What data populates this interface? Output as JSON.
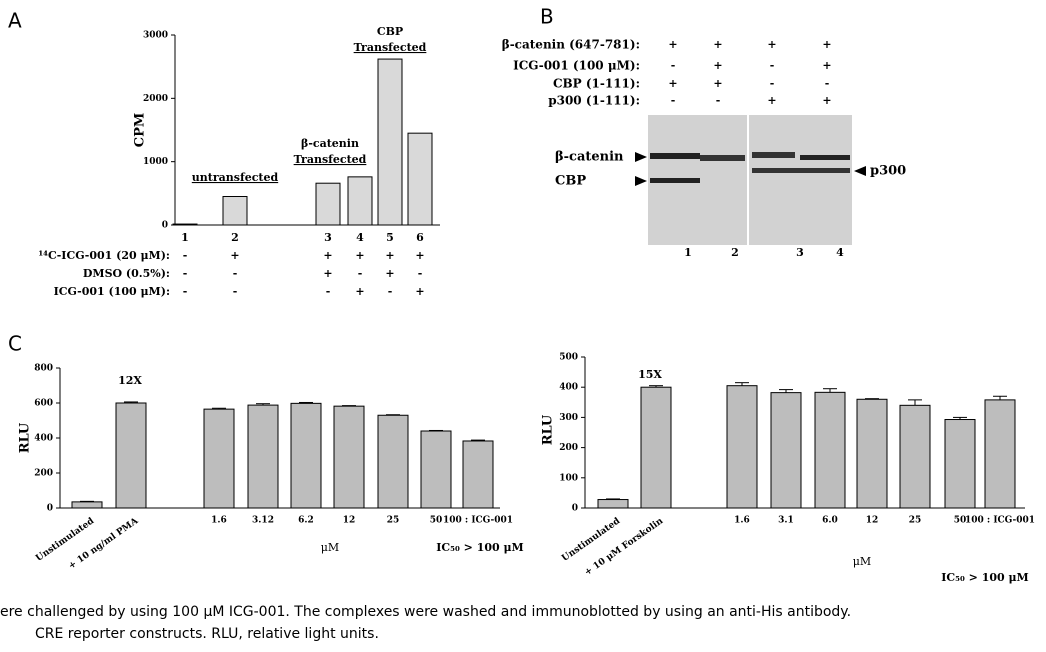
{
  "panel_labels": [
    "A",
    "B",
    "C"
  ],
  "chart_data": [
    {
      "type": "bar",
      "y_label": "CPM",
      "categories": [
        "1",
        "2",
        "3",
        "4",
        "5",
        "6"
      ],
      "values": [
        15,
        450,
        660,
        760,
        2620,
        1450
      ],
      "color": "#d9d9d9",
      "ylim": [
        0,
        3000
      ],
      "yticks": [
        0,
        1000,
        2000,
        3000
      ],
      "annotations": [
        [
          "untransfected"
        ],
        [
          "β-catenin",
          "Transfected"
        ],
        [
          "CBP",
          "Transfected"
        ]
      ],
      "conditions": [
        {
          "label": "¹⁴C-ICG-001 (20 μM):",
          "signs": [
            "-",
            "+",
            "+",
            "+",
            "+",
            "+"
          ]
        },
        {
          "label": "DMSO (0.5%):",
          "signs": [
            "-",
            "-",
            "+",
            "-",
            "+",
            "-"
          ]
        },
        {
          "label": "ICG-001 (100 μM):",
          "signs": [
            "-",
            "-",
            "-",
            "+",
            "-",
            "+"
          ]
        }
      ]
    },
    {
      "type": "bar",
      "y_label": "RLU",
      "categories": [
        "Unstimulated",
        "+ 10 ng/ml PMA",
        "1.6",
        "3.12",
        "6.2",
        "12",
        "25",
        "50",
        "100 : ICG-001"
      ],
      "values": [
        35,
        600,
        565,
        588,
        598,
        582,
        530,
        440,
        383
      ],
      "errors": [
        3,
        6,
        5,
        8,
        5,
        3,
        3,
        3,
        5
      ],
      "color": "#bdbdbd",
      "ylim": [
        0,
        800
      ],
      "yticks": [
        0,
        200,
        400,
        600,
        800
      ],
      "annotations": [
        [
          "12X"
        ]
      ],
      "x_label": "μM",
      "note": "IC₅₀ > 100 μM"
    },
    {
      "type": "bar",
      "y_label": "RLU",
      "categories": [
        "Unstimulated",
        "+ 10 μM Forskolin",
        "1.6",
        "3.1",
        "6.0",
        "12",
        "25",
        "50",
        "100 : ICG-001"
      ],
      "values": [
        28,
        400,
        405,
        382,
        383,
        360,
        340,
        293,
        358
      ],
      "errors": [
        2,
        5,
        10,
        10,
        12,
        2,
        18,
        7,
        12
      ],
      "color": "#bdbdbd",
      "ylim": [
        0,
        500
      ],
      "yticks": [
        0,
        100,
        200,
        300,
        400,
        500
      ],
      "annotations": [
        [
          "15X"
        ]
      ],
      "x_label": "μM",
      "note": "IC₅₀ > 100 μM"
    }
  ],
  "blot": {
    "rows": [
      {
        "label": "β-catenin (647-781):",
        "signs": [
          "+",
          "+",
          "+",
          "+"
        ]
      },
      {
        "label": "ICG-001 (100 μM):",
        "signs": [
          "-",
          "+",
          "-",
          "+"
        ]
      },
      {
        "label": "CBP (1-111):",
        "signs": [
          "+",
          "+",
          "-",
          "-"
        ]
      },
      {
        "label": "p300 (1-111):",
        "signs": [
          "-",
          "-",
          "+",
          "+"
        ]
      }
    ],
    "lanes": [
      "1",
      "2",
      "3",
      "4"
    ],
    "bands": [
      "β-catenin",
      "CBP",
      "p300"
    ]
  },
  "caption": [
    "ere challenged by using 100 μM ICG-001. The complexes were washed and immunoblotted by using an anti-His antibody.",
    "CRE reporter constructs. RLU, relative light units."
  ]
}
